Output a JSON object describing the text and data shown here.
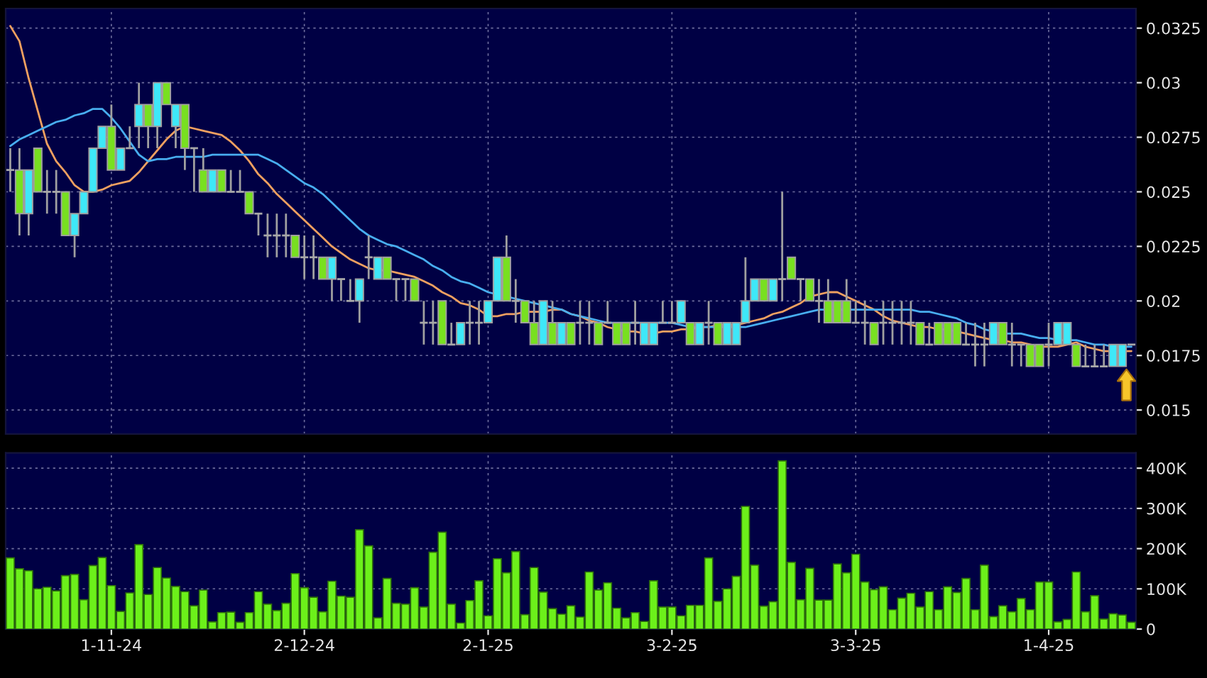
{
  "chart_data": [
    {
      "type": "candlestick",
      "categories": [
        null,
        null,
        null,
        null,
        null,
        null,
        null,
        null,
        null,
        null,
        null,
        null,
        null,
        null,
        null,
        null,
        null,
        null,
        null,
        null,
        null,
        null,
        null,
        null,
        null,
        null,
        null,
        null,
        null,
        null,
        null,
        null,
        null,
        null,
        null,
        null,
        null,
        null,
        null,
        null,
        null,
        null,
        null,
        null,
        null,
        null,
        null,
        null,
        null,
        null,
        null,
        null,
        null,
        null,
        null,
        null,
        null,
        null,
        null,
        null,
        null,
        null,
        null,
        null,
        null,
        null,
        null,
        null,
        null,
        null,
        null,
        null,
        null,
        null,
        null,
        null,
        null,
        null,
        null,
        null,
        null,
        null,
        null,
        null,
        null,
        null,
        null,
        null,
        null,
        null,
        null,
        null,
        null,
        null,
        null,
        null,
        null,
        null,
        null,
        null,
        null,
        null,
        null,
        null,
        null,
        null,
        null,
        null,
        null,
        null,
        null,
        null,
        null,
        null,
        null,
        null,
        null,
        null,
        null,
        null,
        null,
        null,
        null
      ],
      "ohlc": [
        [
          0.026,
          0.027,
          0.025,
          0.026
        ],
        [
          0.026,
          0.027,
          0.023,
          0.024
        ],
        [
          0.024,
          0.026,
          0.023,
          0.026
        ],
        [
          0.027,
          0.027,
          0.025,
          0.025
        ],
        [
          0.025,
          0.026,
          0.024,
          0.025
        ],
        [
          0.025,
          0.026,
          0.024,
          0.025
        ],
        [
          0.025,
          0.025,
          0.023,
          0.023
        ],
        [
          0.023,
          0.024,
          0.022,
          0.024
        ],
        [
          0.024,
          0.025,
          0.024,
          0.025
        ],
        [
          0.025,
          0.027,
          0.025,
          0.027
        ],
        [
          0.027,
          0.028,
          0.027,
          0.028
        ],
        [
          0.028,
          0.029,
          0.026,
          0.026
        ],
        [
          0.026,
          0.027,
          0.026,
          0.027
        ],
        [
          0.027,
          0.028,
          0.027,
          0.027
        ],
        [
          0.028,
          0.03,
          0.027,
          0.029
        ],
        [
          0.029,
          0.029,
          0.027,
          0.028
        ],
        [
          0.028,
          0.03,
          0.027,
          0.03
        ],
        [
          0.03,
          0.03,
          0.029,
          0.029
        ],
        [
          0.028,
          0.029,
          0.027,
          0.029
        ],
        [
          0.029,
          0.029,
          0.026,
          0.027
        ],
        [
          0.027,
          0.027,
          0.025,
          0.027
        ],
        [
          0.026,
          0.027,
          0.025,
          0.025
        ],
        [
          0.025,
          0.026,
          0.025,
          0.026
        ],
        [
          0.026,
          0.026,
          0.025,
          0.025
        ],
        [
          0.025,
          0.026,
          0.025,
          0.025
        ],
        [
          0.025,
          0.026,
          0.025,
          0.025
        ],
        [
          0.025,
          0.025,
          0.024,
          0.024
        ],
        [
          0.024,
          0.024,
          0.023,
          0.024
        ],
        [
          0.023,
          0.024,
          0.022,
          0.023
        ],
        [
          0.023,
          0.024,
          0.022,
          0.023
        ],
        [
          0.023,
          0.024,
          0.022,
          0.023
        ],
        [
          0.023,
          0.023,
          0.022,
          0.022
        ],
        [
          0.022,
          0.023,
          0.021,
          0.022
        ],
        [
          0.022,
          0.023,
          0.021,
          0.022
        ],
        [
          0.022,
          0.022,
          0.021,
          0.021
        ],
        [
          0.021,
          0.022,
          0.02,
          0.022
        ],
        [
          0.021,
          0.021,
          0.02,
          0.021
        ],
        [
          0.02,
          0.021,
          0.02,
          0.02
        ],
        [
          0.02,
          0.021,
          0.019,
          0.021
        ],
        [
          0.022,
          0.023,
          0.021,
          0.022
        ],
        [
          0.021,
          0.022,
          0.021,
          0.022
        ],
        [
          0.022,
          0.022,
          0.021,
          0.021
        ],
        [
          0.021,
          0.021,
          0.02,
          0.021
        ],
        [
          0.021,
          0.021,
          0.02,
          0.021
        ],
        [
          0.021,
          0.021,
          0.02,
          0.02
        ],
        [
          0.019,
          0.02,
          0.018,
          0.019
        ],
        [
          0.019,
          0.02,
          0.018,
          0.019
        ],
        [
          0.02,
          0.02,
          0.018,
          0.018
        ],
        [
          0.018,
          0.019,
          0.018,
          0.018
        ],
        [
          0.018,
          0.019,
          0.018,
          0.019
        ],
        [
          0.019,
          0.02,
          0.018,
          0.019
        ],
        [
          0.019,
          0.02,
          0.018,
          0.019
        ],
        [
          0.019,
          0.02,
          0.019,
          0.02
        ],
        [
          0.02,
          0.022,
          0.02,
          0.022
        ],
        [
          0.022,
          0.023,
          0.02,
          0.02
        ],
        [
          0.02,
          0.021,
          0.019,
          0.02
        ],
        [
          0.02,
          0.02,
          0.019,
          0.019
        ],
        [
          0.019,
          0.02,
          0.018,
          0.018
        ],
        [
          0.018,
          0.02,
          0.018,
          0.02
        ],
        [
          0.019,
          0.02,
          0.018,
          0.018
        ],
        [
          0.018,
          0.019,
          0.018,
          0.019
        ],
        [
          0.019,
          0.019,
          0.018,
          0.018
        ],
        [
          0.019,
          0.02,
          0.018,
          0.019
        ],
        [
          0.019,
          0.02,
          0.018,
          0.019
        ],
        [
          0.019,
          0.019,
          0.018,
          0.018
        ],
        [
          0.019,
          0.02,
          0.019,
          0.019
        ],
        [
          0.019,
          0.019,
          0.018,
          0.018
        ],
        [
          0.019,
          0.019,
          0.018,
          0.018
        ],
        [
          0.019,
          0.02,
          0.018,
          0.019
        ],
        [
          0.018,
          0.019,
          0.018,
          0.019
        ],
        [
          0.018,
          0.019,
          0.018,
          0.019
        ],
        [
          0.019,
          0.02,
          0.019,
          0.019
        ],
        [
          0.019,
          0.02,
          0.019,
          0.019
        ],
        [
          0.019,
          0.02,
          0.019,
          0.02
        ],
        [
          0.019,
          0.019,
          0.018,
          0.018
        ],
        [
          0.018,
          0.019,
          0.018,
          0.019
        ],
        [
          0.019,
          0.02,
          0.018,
          0.019
        ],
        [
          0.019,
          0.019,
          0.018,
          0.018
        ],
        [
          0.018,
          0.019,
          0.018,
          0.019
        ],
        [
          0.018,
          0.019,
          0.018,
          0.019
        ],
        [
          0.019,
          0.022,
          0.019,
          0.02
        ],
        [
          0.02,
          0.021,
          0.02,
          0.021
        ],
        [
          0.021,
          0.021,
          0.02,
          0.02
        ],
        [
          0.02,
          0.021,
          0.02,
          0.021
        ],
        [
          0.021,
          0.025,
          0.02,
          0.021
        ],
        [
          0.022,
          0.022,
          0.021,
          0.021
        ],
        [
          0.021,
          0.021,
          0.02,
          0.021
        ],
        [
          0.021,
          0.021,
          0.02,
          0.02
        ],
        [
          0.02,
          0.021,
          0.019,
          0.02
        ],
        [
          0.02,
          0.021,
          0.019,
          0.019
        ],
        [
          0.02,
          0.02,
          0.019,
          0.019
        ],
        [
          0.02,
          0.021,
          0.019,
          0.019
        ],
        [
          0.019,
          0.02,
          0.019,
          0.019
        ],
        [
          0.019,
          0.02,
          0.018,
          0.019
        ],
        [
          0.019,
          0.019,
          0.018,
          0.018
        ],
        [
          0.019,
          0.02,
          0.018,
          0.019
        ],
        [
          0.019,
          0.02,
          0.018,
          0.019
        ],
        [
          0.019,
          0.02,
          0.018,
          0.019
        ],
        [
          0.019,
          0.02,
          0.018,
          0.019
        ],
        [
          0.019,
          0.019,
          0.018,
          0.018
        ],
        [
          0.018,
          0.019,
          0.018,
          0.018
        ],
        [
          0.019,
          0.019,
          0.018,
          0.018
        ],
        [
          0.019,
          0.019,
          0.018,
          0.018
        ],
        [
          0.019,
          0.019,
          0.018,
          0.018
        ],
        [
          0.018,
          0.019,
          0.018,
          0.018
        ],
        [
          0.018,
          0.019,
          0.017,
          0.018
        ],
        [
          0.018,
          0.019,
          0.017,
          0.018
        ],
        [
          0.018,
          0.019,
          0.018,
          0.019
        ],
        [
          0.019,
          0.019,
          0.018,
          0.018
        ],
        [
          0.018,
          0.019,
          0.017,
          0.018
        ],
        [
          0.018,
          0.018,
          0.017,
          0.018
        ],
        [
          0.018,
          0.018,
          0.017,
          0.017
        ],
        [
          0.018,
          0.018,
          0.017,
          0.017
        ],
        [
          0.018,
          0.019,
          0.017,
          0.018
        ],
        [
          0.018,
          0.019,
          0.018,
          0.019
        ],
        [
          0.018,
          0.019,
          0.018,
          0.019
        ],
        [
          0.018,
          0.018,
          0.017,
          0.017
        ],
        [
          0.017,
          0.018,
          0.017,
          0.017
        ],
        [
          0.017,
          0.018,
          0.017,
          0.017
        ],
        [
          0.017,
          0.018,
          0.017,
          0.017
        ],
        [
          0.017,
          0.018,
          0.017,
          0.018
        ],
        [
          0.017,
          0.018,
          0.017,
          0.018
        ],
        [
          0.018,
          0.018,
          0.018,
          0.018
        ]
      ],
      "colors": [
        "#a8a8a8",
        "#78e020",
        "#3ee8f8",
        "#78e020",
        "#a8a8a8",
        "#a8a8a8",
        "#78e020",
        "#3ee8f8",
        "#3ee8f8",
        "#3ee8f8",
        "#3ee8f8",
        "#78e020",
        "#3ee8f8",
        "#a8a8a8",
        "#3ee8f8",
        "#78e020",
        "#3ee8f8",
        "#78e020",
        "#3ee8f8",
        "#78e020",
        "#a8a8a8",
        "#78e020",
        "#3ee8f8",
        "#78e020",
        "#a8a8a8",
        "#a8a8a8",
        "#78e020",
        "#a8a8a8",
        "#a8a8a8",
        "#a8a8a8",
        "#a8a8a8",
        "#78e020",
        "#a8a8a8",
        "#a8a8a8",
        "#78e020",
        "#3ee8f8",
        "#a8a8a8",
        "#a8a8a8",
        "#3ee8f8",
        "#a8a8a8",
        "#3ee8f8",
        "#78e020",
        "#a8a8a8",
        "#a8a8a8",
        "#78e020",
        "#a8a8a8",
        "#a8a8a8",
        "#78e020",
        "#a8a8a8",
        "#3ee8f8",
        "#a8a8a8",
        "#a8a8a8",
        "#3ee8f8",
        "#3ee8f8",
        "#78e020",
        "#a8a8a8",
        "#78e020",
        "#78e020",
        "#3ee8f8",
        "#78e020",
        "#3ee8f8",
        "#78e020",
        "#a8a8a8",
        "#a8a8a8",
        "#78e020",
        "#a8a8a8",
        "#78e020",
        "#78e020",
        "#a8a8a8",
        "#3ee8f8",
        "#3ee8f8",
        "#a8a8a8",
        "#a8a8a8",
        "#3ee8f8",
        "#78e020",
        "#3ee8f8",
        "#a8a8a8",
        "#78e020",
        "#3ee8f8",
        "#3ee8f8",
        "#3ee8f8",
        "#3ee8f8",
        "#78e020",
        "#3ee8f8",
        "#a8a8a8",
        "#78e020",
        "#a8a8a8",
        "#78e020",
        "#a8a8a8",
        "#78e020",
        "#78e020",
        "#78e020",
        "#a8a8a8",
        "#a8a8a8",
        "#78e020",
        "#a8a8a8",
        "#a8a8a8",
        "#a8a8a8",
        "#a8a8a8",
        "#78e020",
        "#a8a8a8",
        "#78e020",
        "#78e020",
        "#78e020",
        "#a8a8a8",
        "#a8a8a8",
        "#a8a8a8",
        "#3ee8f8",
        "#78e020",
        "#a8a8a8",
        "#a8a8a8",
        "#78e020",
        "#78e020",
        "#a8a8a8",
        "#3ee8f8",
        "#3ee8f8",
        "#78e020",
        "#a8a8a8",
        "#a8a8a8",
        "#a8a8a8",
        "#3ee8f8",
        "#3ee8f8",
        "#a8a8a8"
      ],
      "series": [
        {
          "type": "line",
          "color": "#f0a060",
          "values": [
            0.0326,
            0.0319,
            0.0302,
            0.0287,
            0.0272,
            0.0264,
            0.0259,
            0.0253,
            0.025,
            0.025,
            0.0251,
            0.0253,
            0.0254,
            0.0255,
            0.0259,
            0.0264,
            0.0269,
            0.0274,
            0.0278,
            0.028,
            0.0279,
            0.0278,
            0.0277,
            0.0276,
            0.0273,
            0.0269,
            0.0264,
            0.0258,
            0.0254,
            0.0249,
            0.0245,
            0.0241,
            0.0237,
            0.0233,
            0.0229,
            0.0225,
            0.0222,
            0.0219,
            0.0217,
            0.0215,
            0.0214,
            0.0214,
            0.0213,
            0.0212,
            0.0211,
            0.0209,
            0.0207,
            0.0204,
            0.0202,
            0.0199,
            0.0198,
            0.0196,
            0.0193,
            0.0193,
            0.0194,
            0.0194,
            0.0195,
            0.0195,
            0.0195,
            0.0196,
            0.0196,
            0.0194,
            0.0193,
            0.0191,
            0.019,
            0.0188,
            0.0187,
            0.0186,
            0.0186,
            0.0185,
            0.0185,
            0.0186,
            0.0186,
            0.0187,
            0.0187,
            0.0188,
            0.0188,
            0.0189,
            0.0189,
            0.0189,
            0.019,
            0.0191,
            0.0192,
            0.0194,
            0.0195,
            0.0197,
            0.0199,
            0.0202,
            0.0203,
            0.0204,
            0.0204,
            0.0202,
            0.02,
            0.0198,
            0.0196,
            0.0193,
            0.0191,
            0.019,
            0.0189,
            0.0188,
            0.0188,
            0.0187,
            0.0187,
            0.0186,
            0.0185,
            0.0184,
            0.0183,
            0.0182,
            0.0182,
            0.0181,
            0.0181,
            0.018,
            0.0179,
            0.0179,
            0.0179,
            0.018,
            0.0181,
            0.0179,
            0.0178,
            0.0177,
            0.0177,
            0.0177,
            0.0177
          ]
        },
        {
          "type": "line",
          "color": "#48aef0",
          "values": [
            0.0271,
            0.0274,
            0.0276,
            0.0278,
            0.028,
            0.0282,
            0.0283,
            0.0285,
            0.0286,
            0.0288,
            0.0288,
            0.0284,
            0.0279,
            0.0273,
            0.0267,
            0.0264,
            0.0265,
            0.0265,
            0.0266,
            0.0266,
            0.0266,
            0.0266,
            0.0267,
            0.0267,
            0.0267,
            0.0267,
            0.0267,
            0.0267,
            0.0265,
            0.0263,
            0.026,
            0.0257,
            0.0254,
            0.0252,
            0.0249,
            0.0245,
            0.0241,
            0.0237,
            0.0233,
            0.023,
            0.0228,
            0.0226,
            0.0225,
            0.0223,
            0.0221,
            0.0219,
            0.0216,
            0.0214,
            0.0211,
            0.0209,
            0.0208,
            0.0206,
            0.0204,
            0.0203,
            0.0202,
            0.0201,
            0.02,
            0.0199,
            0.0198,
            0.0197,
            0.0196,
            0.0194,
            0.0193,
            0.0192,
            0.0191,
            0.019,
            0.019,
            0.019,
            0.019,
            0.019,
            0.019,
            0.019,
            0.019,
            0.0189,
            0.0188,
            0.0188,
            0.0188,
            0.0188,
            0.0188,
            0.0188,
            0.0188,
            0.0189,
            0.019,
            0.0191,
            0.0192,
            0.0193,
            0.0194,
            0.0195,
            0.0196,
            0.0196,
            0.0196,
            0.0196,
            0.0196,
            0.0196,
            0.0196,
            0.0196,
            0.0196,
            0.0196,
            0.0196,
            0.0195,
            0.0195,
            0.0194,
            0.0193,
            0.0192,
            0.019,
            0.0189,
            0.0187,
            0.0186,
            0.0185,
            0.0185,
            0.0185,
            0.0184,
            0.0183,
            0.0183,
            0.0182,
            0.0182,
            0.0182,
            0.0181,
            0.018,
            0.018,
            0.0179,
            0.0179,
            0.0179
          ]
        }
      ],
      "ylim": [
        0.0139,
        0.0334
      ],
      "yticks": [
        0.015,
        0.0175,
        0.02,
        0.0225,
        0.025,
        0.0275,
        0.03,
        0.0325
      ],
      "grid": true,
      "tick_labels": "y"
    },
    {
      "type": "bar",
      "categories": [
        null,
        null,
        null,
        null,
        null,
        null,
        null,
        null,
        null,
        null,
        null,
        "1-11-24",
        null,
        null,
        null,
        null,
        null,
        null,
        null,
        null,
        null,
        null,
        null,
        null,
        null,
        null,
        null,
        null,
        null,
        null,
        null,
        null,
        "2-12-24",
        null,
        null,
        null,
        null,
        null,
        null,
        null,
        null,
        null,
        null,
        null,
        null,
        null,
        null,
        null,
        null,
        null,
        null,
        null,
        "2-1-25",
        null,
        null,
        null,
        null,
        null,
        null,
        null,
        null,
        null,
        null,
        null,
        null,
        null,
        null,
        null,
        null,
        null,
        null,
        null,
        "3-2-25",
        null,
        null,
        null,
        null,
        null,
        null,
        null,
        null,
        null,
        null,
        null,
        null,
        null,
        null,
        null,
        null,
        null,
        null,
        null,
        "3-3-25",
        null,
        null,
        null,
        null,
        null,
        null,
        null,
        null,
        null,
        null,
        null,
        null,
        null,
        null,
        null,
        null,
        null,
        null,
        null,
        null,
        "1-4-25",
        null,
        null,
        null,
        null,
        null,
        null,
        null,
        null,
        null
      ],
      "values": [
        177000,
        150000,
        145000,
        100000,
        104000,
        95000,
        133000,
        136000,
        73000,
        158000,
        178000,
        108000,
        44000,
        90000,
        210000,
        86000,
        153000,
        127000,
        106000,
        93000,
        58000,
        97000,
        18000,
        41000,
        42000,
        17000,
        41000,
        93000,
        62000,
        46000,
        64000,
        138000,
        103000,
        79000,
        43000,
        119000,
        82000,
        79000,
        247000,
        207000,
        28000,
        126000,
        64000,
        62000,
        103000,
        55000,
        191000,
        241000,
        62000,
        15000,
        71000,
        120000,
        33000,
        175000,
        140000,
        193000,
        36000,
        153000,
        92000,
        51000,
        37000,
        58000,
        30000,
        142000,
        97000,
        115000,
        52000,
        28000,
        41000,
        19000,
        120000,
        55000,
        55000,
        33000,
        59000,
        59000,
        177000,
        69000,
        100000,
        131000,
        305000,
        159000,
        57000,
        68000,
        418000,
        166000,
        73000,
        151000,
        72000,
        72000,
        162000,
        140000,
        186000,
        117000,
        98000,
        105000,
        48000,
        77000,
        89000,
        55000,
        93000,
        48000,
        105000,
        91000,
        126000,
        48000,
        159000,
        31000,
        58000,
        43000,
        76000,
        48000,
        117000,
        117000,
        18000,
        24000,
        142000,
        43000,
        83000,
        25000,
        38000,
        35000,
        17000
      ],
      "color": "#6cf01a",
      "ylim": [
        0,
        438000
      ],
      "yticks": [
        0,
        {
          "value": 100000,
          "label": "100K"
        },
        {
          "value": 200000,
          "label": "200K"
        },
        {
          "value": 300000,
          "label": "300K"
        },
        {
          "value": 400000,
          "label": "400K"
        }
      ],
      "grid": true
    }
  ]
}
